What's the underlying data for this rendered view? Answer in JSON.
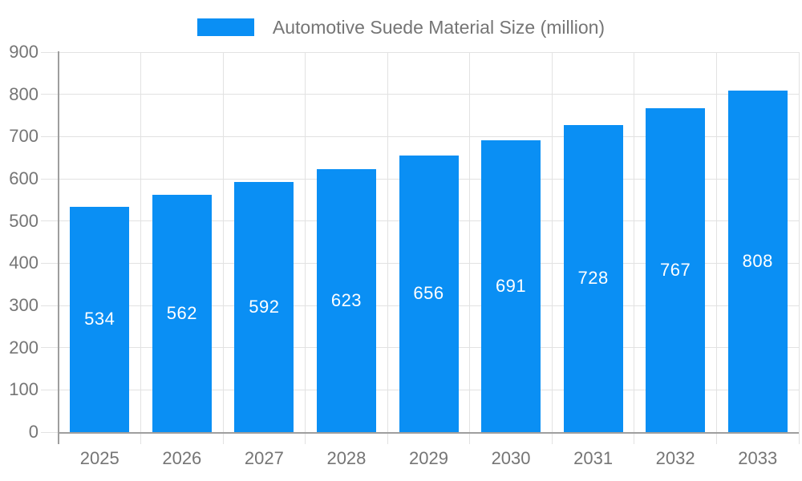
{
  "legend": {
    "label": "Automotive Suede Material Size (million)"
  },
  "chart_data": {
    "type": "bar",
    "title": "Automotive Suede Material Size (million)",
    "categories": [
      "2025",
      "2026",
      "2027",
      "2028",
      "2029",
      "2030",
      "2031",
      "2032",
      "2033"
    ],
    "values": [
      534,
      562,
      592,
      623,
      656,
      691,
      728,
      767,
      808
    ],
    "xlabel": "",
    "ylabel": "",
    "ylim": [
      0,
      900
    ],
    "ytick_interval": 100,
    "ytick_labels": [
      "0",
      "100",
      "200",
      "300",
      "400",
      "500",
      "600",
      "700",
      "800",
      "900"
    ],
    "grid": true,
    "legend_position": "top",
    "value_labels_shown": true,
    "colors": {
      "bar": "#0a8ff4",
      "grid": "#e2e2e2",
      "axis": "#9e9e9e",
      "tick_label": "#757575",
      "value_label": "#ffffff",
      "legend_text": "#757575"
    }
  }
}
